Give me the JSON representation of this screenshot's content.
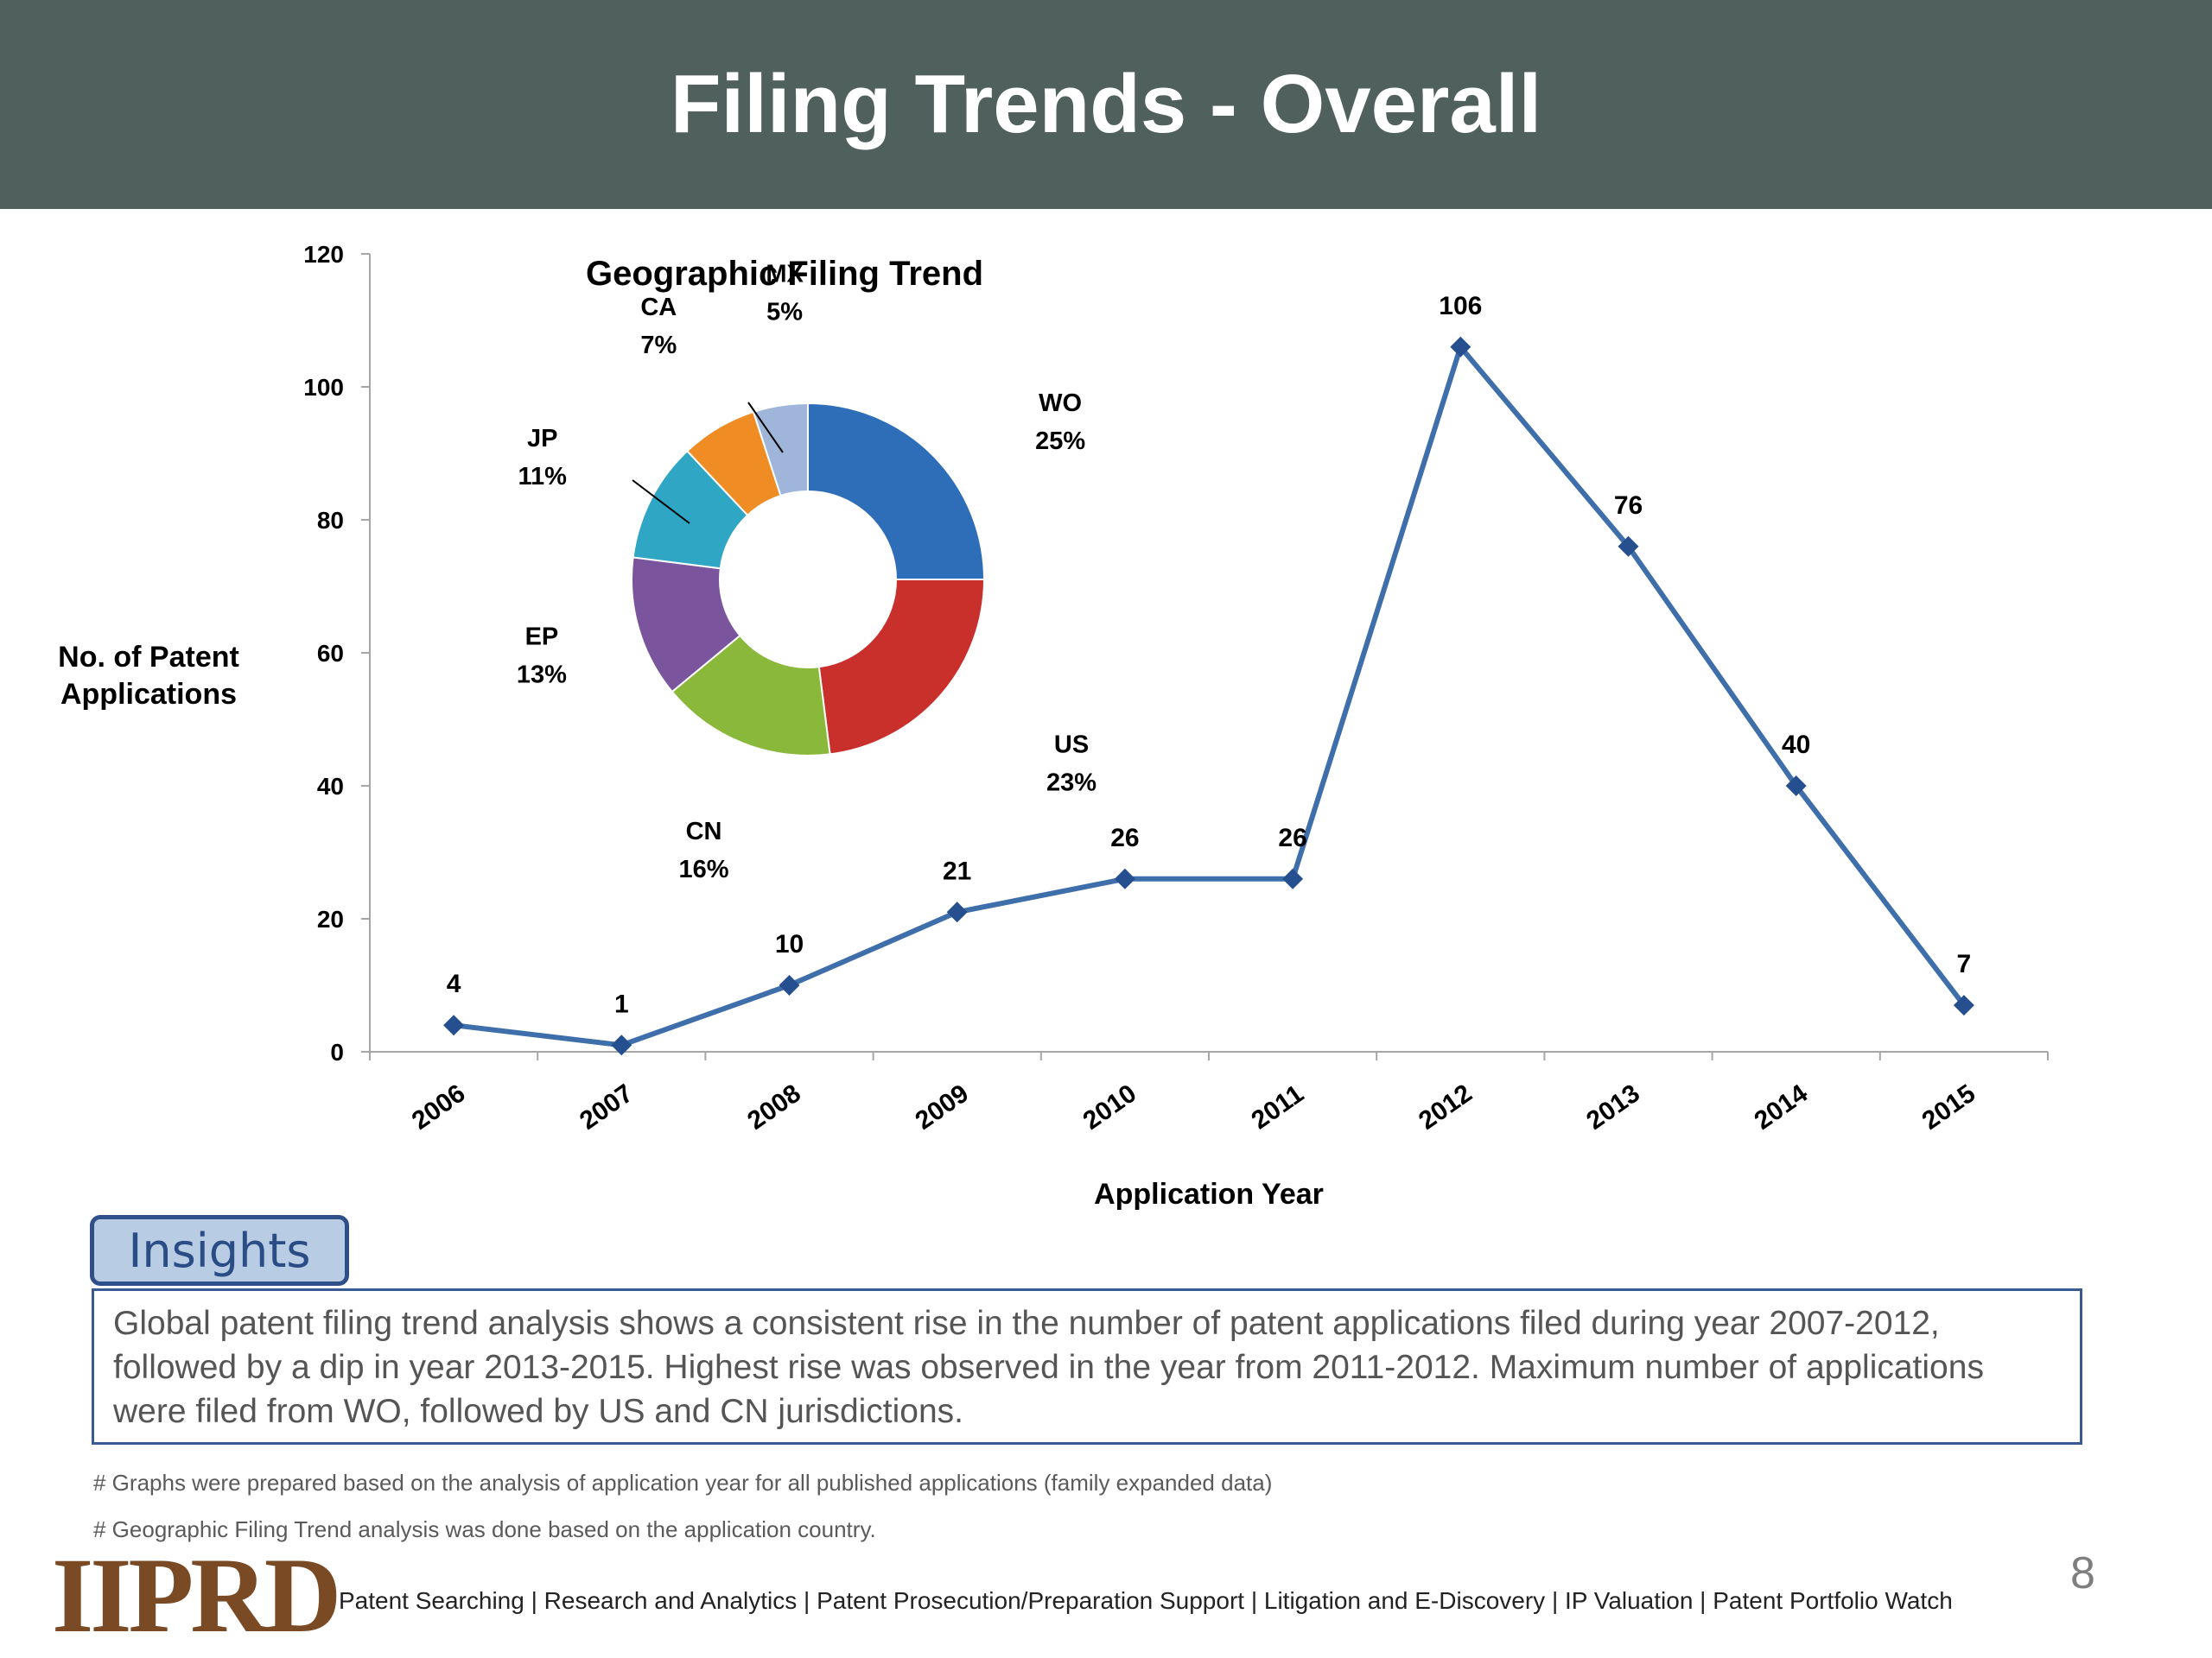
{
  "header": {
    "title": "Filing Trends - Overall"
  },
  "chart_data": [
    {
      "type": "line",
      "title": "",
      "xlabel": "Application Year",
      "ylabel": "No. of  Patent Applications",
      "ylim": [
        0,
        120
      ],
      "y_ticks": [
        0,
        20,
        40,
        60,
        80,
        100,
        120
      ],
      "grid": false,
      "categories": [
        "2006",
        "2007",
        "2008",
        "2009",
        "2010",
        "2011",
        "2012",
        "2013",
        "2014",
        "2015"
      ],
      "series": [
        {
          "values": [
            4,
            1,
            10,
            21,
            26,
            26,
            106,
            76,
            40,
            7
          ],
          "color": "#3f6faa"
        }
      ]
    },
    {
      "type": "pie",
      "donut": true,
      "title": "Geographic Filing Trend",
      "slices": [
        {
          "label": "WO",
          "value": 25,
          "display": "25%",
          "color": "#2e6db8"
        },
        {
          "label": "US",
          "value": 23,
          "display": "23%",
          "color": "#c9302c"
        },
        {
          "label": "CN",
          "value": 16,
          "display": "16%",
          "color": "#8ab83a"
        },
        {
          "label": "EP",
          "value": 13,
          "display": "13%",
          "color": "#7a559e"
        },
        {
          "label": "JP",
          "value": 11,
          "display": "11%",
          "color": "#2ea6c4"
        },
        {
          "label": "CA",
          "value": 7,
          "display": "7%",
          "color": "#ef8c24"
        },
        {
          "label": "MX",
          "value": 5,
          "display": "5%",
          "color": "#9fb6da"
        }
      ]
    }
  ],
  "insights": {
    "label": "Insights",
    "text": "Global patent filing trend analysis shows a consistent rise in the number of patent applications filed during year 2007-2012, followed by a dip in year 2013-2015. Highest rise was observed in the year from 2011-2012. Maximum number of applications were filed from WO, followed by US  and CN jurisdictions."
  },
  "notes": [
    "# Graphs were prepared based on the analysis of application year for all published applications (family expanded data)",
    "# Geographic Filing Trend analysis was done based on the application country."
  ],
  "footer": {
    "logo_text": "IIPRD",
    "services": "Patent Searching | Research and Analytics | Patent Prosecution/Preparation Support | Litigation and E-Discovery | IP Valuation |  Patent Portfolio Watch",
    "page_number": "8"
  }
}
